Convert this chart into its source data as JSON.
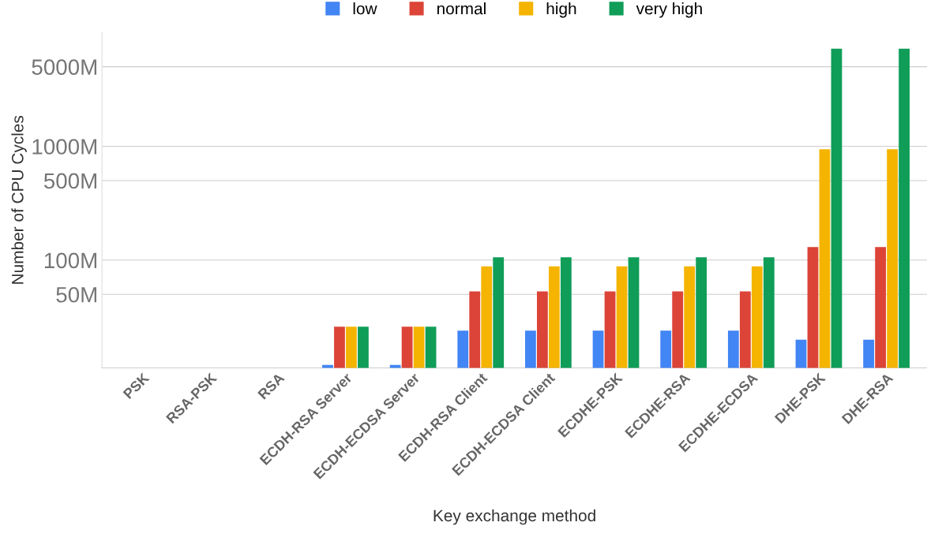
{
  "chart_data": {
    "type": "bar",
    "xlabel": "Key exchange method",
    "ylabel": "Number of CPU Cycles",
    "categories": [
      "PSK",
      "RSA-PSK",
      "RSA",
      "ECDH-RSA Server",
      "ECDH-ECDSA Server",
      "ECDH-RSA Client",
      "ECDH-ECDSA Client",
      "ECDHE-PSK",
      "ECDHE-RSA",
      "ECDHE-ECDSA",
      "DHE-PSK",
      "DHE-RSA"
    ],
    "series": [
      {
        "name": "low",
        "color": "#4285f4",
        "values": [
          null,
          null,
          null,
          12,
          12,
          24,
          24,
          24,
          24,
          24,
          20,
          20
        ]
      },
      {
        "name": "normal",
        "color": "#db4437",
        "values": [
          null,
          null,
          null,
          26,
          26,
          53,
          53,
          53,
          53,
          53,
          130,
          130
        ]
      },
      {
        "name": "high",
        "color": "#f4b400",
        "values": [
          null,
          null,
          null,
          26,
          26,
          88,
          88,
          88,
          88,
          88,
          940,
          940
        ]
      },
      {
        "name": "very high",
        "color": "#0f9d58",
        "values": [
          null,
          null,
          null,
          26,
          26,
          106,
          106,
          106,
          106,
          106,
          7200,
          7200
        ]
      }
    ],
    "log": true,
    "ylim": [
      11.3,
      10000
    ],
    "yticks": [
      {
        "value": 50,
        "label": "50M"
      },
      {
        "value": 100,
        "label": "100M"
      },
      {
        "value": 500,
        "label": "500M"
      },
      {
        "value": 1000,
        "label": "1000M"
      },
      {
        "value": 5000,
        "label": "5000M"
      }
    ],
    "grid": "y",
    "legend": "top"
  }
}
